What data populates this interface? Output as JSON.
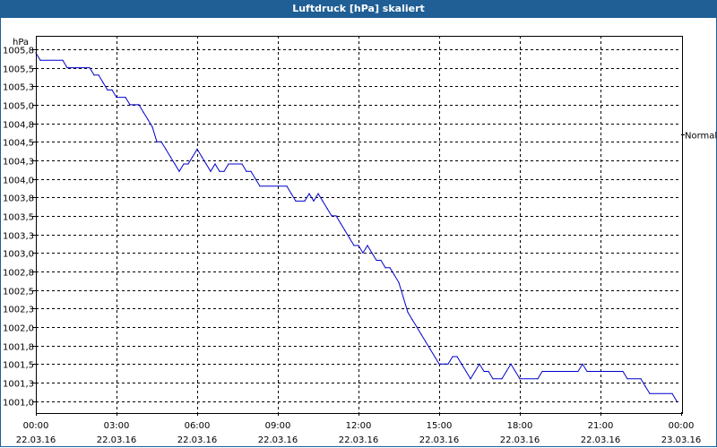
{
  "window": {
    "title": "Luftdruck [hPa] skaliert"
  },
  "colors": {
    "title_bar": "#1f5f95",
    "line": "#0000cc",
    "grid": "#000000"
  },
  "chart_data": {
    "type": "line",
    "title": "Luftdruck [hPa] skaliert",
    "ylabel": "hPa",
    "xlabel": "",
    "ylim": [
      1000.85,
      1005.93
    ],
    "yticks": [
      {
        "value": 1001.0,
        "label": "1001,0"
      },
      {
        "value": 1001.25,
        "label": "1001,3"
      },
      {
        "value": 1001.5,
        "label": "1001,5"
      },
      {
        "value": 1001.75,
        "label": "1001,8"
      },
      {
        "value": 1002.0,
        "label": "1002,0"
      },
      {
        "value": 1002.25,
        "label": "1002,3"
      },
      {
        "value": 1002.5,
        "label": "1002,5"
      },
      {
        "value": 1002.75,
        "label": "1002,8"
      },
      {
        "value": 1003.0,
        "label": "1003,0"
      },
      {
        "value": 1003.25,
        "label": "1003,3"
      },
      {
        "value": 1003.5,
        "label": "1003,5"
      },
      {
        "value": 1003.75,
        "label": "1003,8"
      },
      {
        "value": 1004.0,
        "label": "1004,0"
      },
      {
        "value": 1004.25,
        "label": "1004,3"
      },
      {
        "value": 1004.5,
        "label": "1004,5"
      },
      {
        "value": 1004.75,
        "label": "1004,8"
      },
      {
        "value": 1005.0,
        "label": "1005,0"
      },
      {
        "value": 1005.25,
        "label": "1005,3"
      },
      {
        "value": 1005.5,
        "label": "1005,5"
      },
      {
        "value": 1005.75,
        "label": "1005,8"
      }
    ],
    "xlim": [
      "22.03.16 00:00",
      "23.03.16 00:00"
    ],
    "xticks": [
      {
        "time": "00:00",
        "date": "22.03.16"
      },
      {
        "time": "03:00",
        "date": "22.03.16"
      },
      {
        "time": "06:00",
        "date": "22.03.16"
      },
      {
        "time": "09:00",
        "date": "22.03.16"
      },
      {
        "time": "12:00",
        "date": "22.03.16"
      },
      {
        "time": "15:00",
        "date": "22.03.16"
      },
      {
        "time": "18:00",
        "date": "22.03.16"
      },
      {
        "time": "21:00",
        "date": "22.03.16"
      },
      {
        "time": "00:00",
        "date": "23.03.16"
      }
    ],
    "grid": true,
    "reference_line": {
      "label": "Normal",
      "value": 1004.6
    },
    "series": [
      {
        "points": [
          [
            "22.03.16 00:00",
            1005.7
          ],
          [
            "22.03.16 00:10",
            1005.6
          ],
          [
            "22.03.16 01:00",
            1005.6
          ],
          [
            "22.03.16 01:10",
            1005.5
          ],
          [
            "22.03.16 02:00",
            1005.5
          ],
          [
            "22.03.16 02:10",
            1005.4
          ],
          [
            "22.03.16 02:20",
            1005.4
          ],
          [
            "22.03.16 02:30",
            1005.3
          ],
          [
            "22.03.16 02:40",
            1005.2
          ],
          [
            "22.03.16 02:50",
            1005.2
          ],
          [
            "22.03.16 03:00",
            1005.1
          ],
          [
            "22.03.16 03:20",
            1005.1
          ],
          [
            "22.03.16 03:30",
            1005.0
          ],
          [
            "22.03.16 03:50",
            1005.0
          ],
          [
            "22.03.16 04:00",
            1004.9
          ],
          [
            "22.03.16 04:10",
            1004.8
          ],
          [
            "22.03.16 04:20",
            1004.7
          ],
          [
            "22.03.16 04:30",
            1004.5
          ],
          [
            "22.03.16 04:40",
            1004.5
          ],
          [
            "22.03.16 04:50",
            1004.4
          ],
          [
            "22.03.16 05:00",
            1004.3
          ],
          [
            "22.03.16 05:10",
            1004.2
          ],
          [
            "22.03.16 05:20",
            1004.1
          ],
          [
            "22.03.16 05:30",
            1004.2
          ],
          [
            "22.03.16 05:40",
            1004.2
          ],
          [
            "22.03.16 05:50",
            1004.3
          ],
          [
            "22.03.16 06:00",
            1004.4
          ],
          [
            "22.03.16 06:10",
            1004.3
          ],
          [
            "22.03.16 06:20",
            1004.2
          ],
          [
            "22.03.16 06:30",
            1004.1
          ],
          [
            "22.03.16 06:40",
            1004.2
          ],
          [
            "22.03.16 06:50",
            1004.1
          ],
          [
            "22.03.16 07:00",
            1004.1
          ],
          [
            "22.03.16 07:10",
            1004.2
          ],
          [
            "22.03.16 07:40",
            1004.2
          ],
          [
            "22.03.16 07:50",
            1004.1
          ],
          [
            "22.03.16 08:00",
            1004.1
          ],
          [
            "22.03.16 08:10",
            1004.0
          ],
          [
            "22.03.16 08:20",
            1003.9
          ],
          [
            "22.03.16 09:20",
            1003.9
          ],
          [
            "22.03.16 09:30",
            1003.8
          ],
          [
            "22.03.16 09:40",
            1003.7
          ],
          [
            "22.03.16 10:00",
            1003.7
          ],
          [
            "22.03.16 10:10",
            1003.8
          ],
          [
            "22.03.16 10:20",
            1003.7
          ],
          [
            "22.03.16 10:30",
            1003.8
          ],
          [
            "22.03.16 10:40",
            1003.7
          ],
          [
            "22.03.16 10:50",
            1003.6
          ],
          [
            "22.03.16 11:00",
            1003.5
          ],
          [
            "22.03.16 11:10",
            1003.5
          ],
          [
            "22.03.16 11:20",
            1003.4
          ],
          [
            "22.03.16 11:30",
            1003.3
          ],
          [
            "22.03.16 11:40",
            1003.2
          ],
          [
            "22.03.16 11:50",
            1003.1
          ],
          [
            "22.03.16 12:00",
            1003.1
          ],
          [
            "22.03.16 12:10",
            1003.0
          ],
          [
            "22.03.16 12:20",
            1003.1
          ],
          [
            "22.03.16 12:30",
            1003.0
          ],
          [
            "22.03.16 12:40",
            1002.9
          ],
          [
            "22.03.16 12:50",
            1002.9
          ],
          [
            "22.03.16 13:00",
            1002.8
          ],
          [
            "22.03.16 13:10",
            1002.8
          ],
          [
            "22.03.16 13:20",
            1002.7
          ],
          [
            "22.03.16 13:30",
            1002.6
          ],
          [
            "22.03.16 13:40",
            1002.4
          ],
          [
            "22.03.16 13:50",
            1002.2
          ],
          [
            "22.03.16 14:00",
            1002.1
          ],
          [
            "22.03.16 14:10",
            1002.0
          ],
          [
            "22.03.16 14:20",
            1001.9
          ],
          [
            "22.03.16 14:30",
            1001.8
          ],
          [
            "22.03.16 14:40",
            1001.7
          ],
          [
            "22.03.16 14:50",
            1001.6
          ],
          [
            "22.03.16 15:00",
            1001.5
          ],
          [
            "22.03.16 15:10",
            1001.5
          ],
          [
            "22.03.16 15:20",
            1001.5
          ],
          [
            "22.03.16 15:30",
            1001.6
          ],
          [
            "22.03.16 15:40",
            1001.6
          ],
          [
            "22.03.16 15:50",
            1001.5
          ],
          [
            "22.03.16 16:00",
            1001.4
          ],
          [
            "22.03.16 16:10",
            1001.3
          ],
          [
            "22.03.16 16:20",
            1001.4
          ],
          [
            "22.03.16 16:30",
            1001.5
          ],
          [
            "22.03.16 16:40",
            1001.4
          ],
          [
            "22.03.16 16:50",
            1001.4
          ],
          [
            "22.03.16 17:00",
            1001.3
          ],
          [
            "22.03.16 17:20",
            1001.3
          ],
          [
            "22.03.16 17:30",
            1001.4
          ],
          [
            "22.03.16 17:40",
            1001.5
          ],
          [
            "22.03.16 17:50",
            1001.4
          ],
          [
            "22.03.16 18:00",
            1001.3
          ],
          [
            "22.03.16 18:40",
            1001.3
          ],
          [
            "22.03.16 18:50",
            1001.4
          ],
          [
            "22.03.16 20:10",
            1001.4
          ],
          [
            "22.03.16 20:20",
            1001.5
          ],
          [
            "22.03.16 20:30",
            1001.4
          ],
          [
            "22.03.16 21:50",
            1001.4
          ],
          [
            "22.03.16 22:00",
            1001.3
          ],
          [
            "22.03.16 22:30",
            1001.3
          ],
          [
            "22.03.16 22:40",
            1001.2
          ],
          [
            "22.03.16 22:50",
            1001.1
          ],
          [
            "22.03.16 23:40",
            1001.1
          ],
          [
            "22.03.16 23:50",
            1001.0
          ]
        ]
      }
    ]
  }
}
